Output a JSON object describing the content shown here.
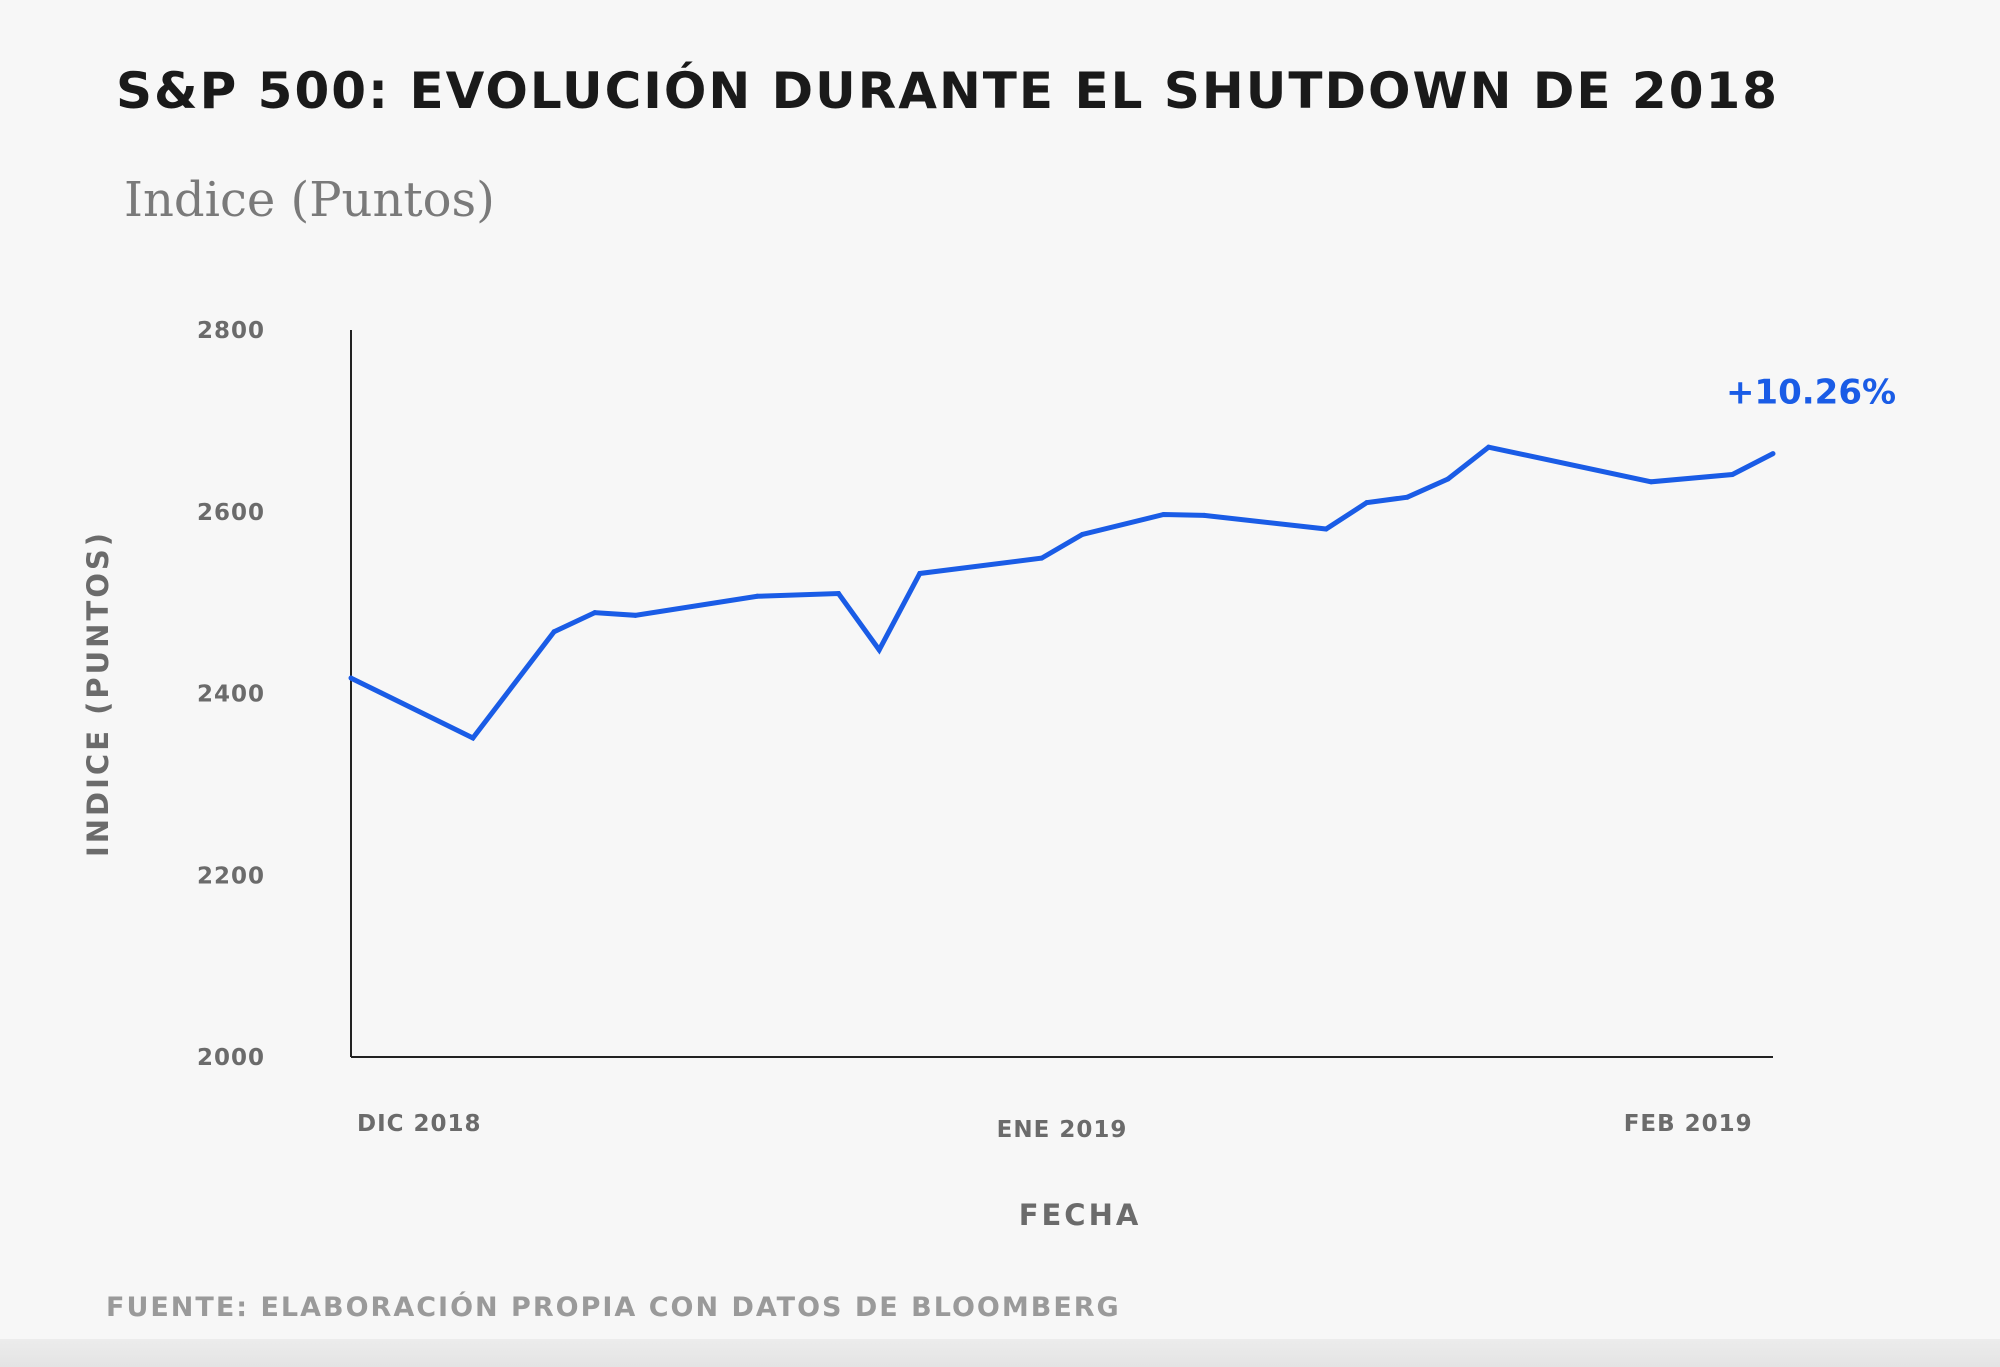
{
  "chart_data": {
    "type": "line",
    "title": "S&P 500: EVOLUCIÓN DURANTE EL SHUTDOWN DE 2018",
    "subtitle": "Indice (Puntos)",
    "xlabel": "FECHA",
    "ylabel": "INDICE (PUNTOS)",
    "ylim": [
      2000,
      2800
    ],
    "yticks": [
      "2800",
      "2600",
      "2400",
      "2200",
      "2000"
    ],
    "ytick_values": [
      2800,
      2600,
      2400,
      2200,
      2000
    ],
    "xlim": [
      0,
      35
    ],
    "xticks": [
      {
        "label": "DIC 2018",
        "x": 0
      },
      {
        "label": "ENE 2019",
        "x": 17.5
      },
      {
        "label": "FEB 2019",
        "x": 34.5
      }
    ],
    "series": [
      {
        "name": "S&P 500",
        "color": "#1a5ce6",
        "x": [
          0,
          3,
          5,
          6,
          7,
          10,
          12,
          13,
          14,
          17,
          18,
          20,
          21,
          24,
          25,
          26,
          27,
          28,
          32,
          34,
          35
        ],
        "values": [
          2417,
          2351,
          2468,
          2489,
          2486,
          2507,
          2510,
          2448,
          2532,
          2549,
          2575,
          2597,
          2596,
          2581,
          2610,
          2616,
          2636,
          2671,
          2633,
          2641,
          2664
        ]
      }
    ],
    "annotation": {
      "text": "+10.26%",
      "x": 35,
      "y": 2664,
      "color": "#1a5ce6"
    },
    "source": "FUENTE: ELABORACIÓN PROPIA CON DATOS DE BLOOMBERG"
  }
}
